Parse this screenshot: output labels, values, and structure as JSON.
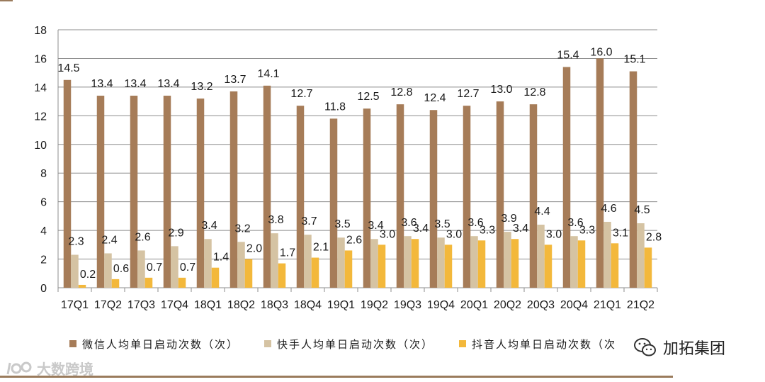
{
  "colors": {
    "wechat": "#A67C58",
    "kuaishou": "#D5C3A3",
    "douyin": "#F3B83B",
    "grid": "#8C8C8C",
    "rule": "#9A7B5C"
  },
  "legend": [
    {
      "label": "微信人均单日启动次数（次）",
      "color_key": "wechat"
    },
    {
      "label": "快手人均单日启动次数（次）",
      "color_key": "kuaishou"
    },
    {
      "label": "抖音人均单日启动次数（次",
      "color_key": "douyin"
    }
  ],
  "watermarks": {
    "left_text": "大数跨境",
    "left_icon": "dashuju-logo-icon",
    "right_text": "加拓集团",
    "right_icon": "wechat-icon"
  },
  "chart_data": {
    "type": "bar",
    "categories": [
      "17Q1",
      "17Q2",
      "17Q3",
      "17Q4",
      "18Q1",
      "18Q2",
      "18Q3",
      "18Q4",
      "19Q1",
      "19Q2",
      "19Q3",
      "19Q4",
      "20Q1",
      "20Q2",
      "20Q3",
      "20Q4",
      "21Q1",
      "21Q2"
    ],
    "series": [
      {
        "name": "微信人均单日启动次数（次）",
        "values": [
          14.5,
          13.4,
          13.4,
          13.4,
          13.2,
          13.7,
          14.1,
          12.7,
          11.8,
          12.5,
          12.8,
          12.4,
          12.7,
          13.0,
          12.8,
          15.4,
          16.0,
          15.1
        ]
      },
      {
        "name": "快手人均单日启动次数（次）",
        "values": [
          2.3,
          2.4,
          2.6,
          2.9,
          3.4,
          3.2,
          3.8,
          3.7,
          3.5,
          3.4,
          3.6,
          3.5,
          3.6,
          3.9,
          4.4,
          3.6,
          4.6,
          4.5
        ]
      },
      {
        "name": "抖音人均单日启动次数（次",
        "values": [
          0.2,
          0.6,
          0.7,
          0.7,
          1.4,
          2.0,
          1.7,
          2.1,
          2.6,
          3.0,
          3.4,
          3.0,
          3.3,
          3.4,
          3.0,
          3.3,
          3.1,
          2.8
        ]
      }
    ],
    "title": "",
    "xlabel": "",
    "ylabel": "",
    "ylim": [
      0,
      18
    ],
    "yticks": [
      0,
      2,
      4,
      6,
      8,
      10,
      12,
      14,
      16,
      18
    ],
    "grid": true,
    "legend_position": "bottom"
  }
}
